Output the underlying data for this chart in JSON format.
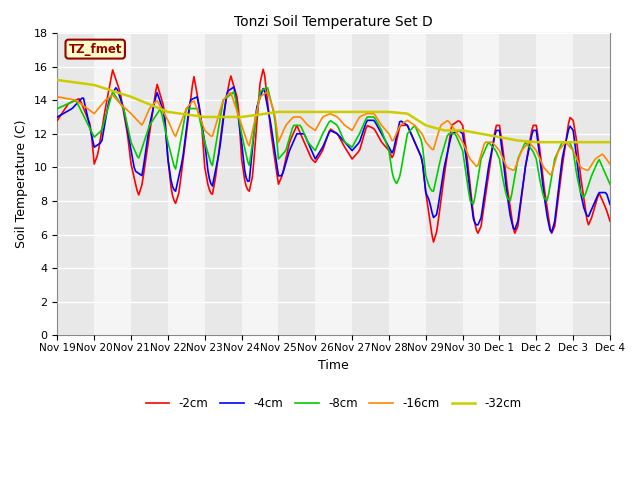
{
  "title": "Tonzi Soil Temperature Set D",
  "xlabel": "Time",
  "ylabel": "Soil Temperature (C)",
  "ylim": [
    0,
    18
  ],
  "yticks": [
    0,
    2,
    4,
    6,
    8,
    10,
    12,
    14,
    16,
    18
  ],
  "bg_color": "#ffffff",
  "plot_bg": "#ffffff",
  "annotation_text": "TZ_fmet",
  "annotation_bg": "#ffffcc",
  "annotation_fg": "#990000",
  "series": {
    "-2cm": {
      "color": "#ff0000",
      "lw": 1.2
    },
    "-4cm": {
      "color": "#0000ff",
      "lw": 1.2
    },
    "-8cm": {
      "color": "#00cc00",
      "lw": 1.2
    },
    "-16cm": {
      "color": "#ff8800",
      "lw": 1.2
    },
    "-32cm": {
      "color": "#cccc00",
      "lw": 1.8
    }
  },
  "x_labels": [
    "Nov 19",
    "Nov 20",
    "Nov 21",
    "Nov 22",
    "Nov 23",
    "Nov 24",
    "Nov 25",
    "Nov 26",
    "Nov 27",
    "Nov 28",
    "Nov 29",
    "Nov 30",
    "Dec 1",
    "Dec 2",
    "Dec 3",
    "Dec 4"
  ],
  "band_colors": [
    "#e8e8e8",
    "#f5f5f5"
  ],
  "grid_color": "#ffffff",
  "tick_fontsize": 7.5,
  "figsize": [
    6.4,
    4.8
  ],
  "dpi": 100
}
